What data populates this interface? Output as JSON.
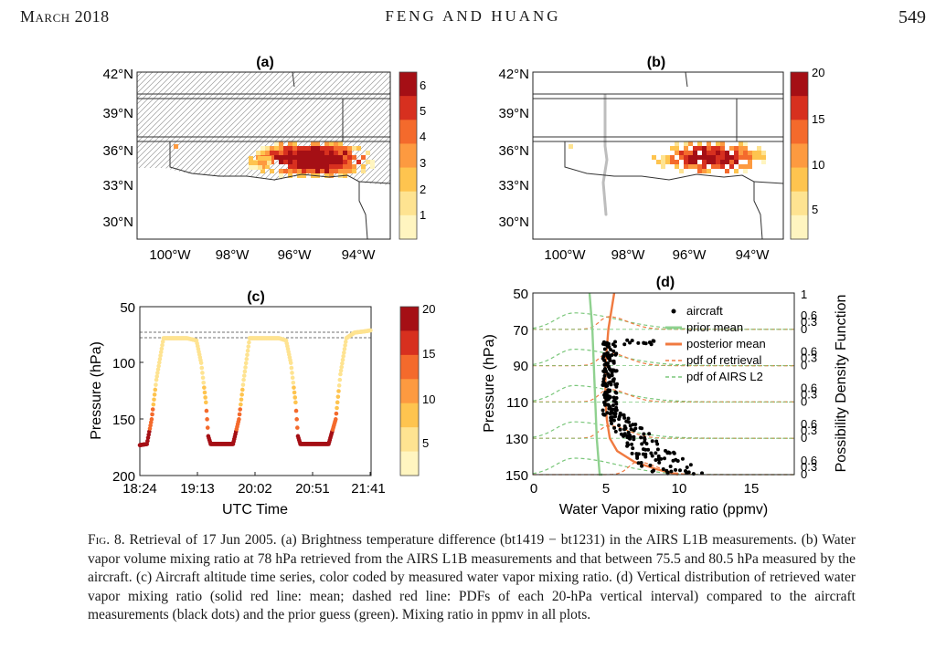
{
  "header": {
    "left": "March 2018",
    "center": "FENG AND HUANG",
    "right": "549"
  },
  "caption": {
    "label": "Fig. 8.",
    "text": "Retrieval of 17 Jun 2005. (a) Brightness temperature difference (bt1419 − bt1231) in the AIRS L1B measurements. (b) Water vapor volume mixing ratio at 78 hPa retrieved from the AIRS L1B measurements and that between 75.5 and 80.5 hPa measured by the aircraft. (c) Aircraft altitude time series, color coded by measured water vapor mixing ratio. (d) Vertical distribution of retrieved water vapor mixing ratio (solid red line: mean; dashed red line: PDFs of each 20-hPa vertical interval) compared to the aircraft measurements (black dots) and the prior guess (green). Mixing ratio in ppmv in all plots."
  },
  "colors": [
    "#fff5c0",
    "#fee391",
    "#fec44f",
    "#fd9a40",
    "#f46a2c",
    "#d7301f",
    "#a50f15"
  ],
  "panels": {
    "a": {
      "label": "(a)",
      "lat_ticks": [
        "42°N",
        "39°N",
        "36°N",
        "33°N",
        "30°N"
      ],
      "lon_ticks": [
        "100°W",
        "98°W",
        "96°W",
        "94°W"
      ],
      "colorbar_ticks": [
        "6",
        "5",
        "4",
        "3",
        "2",
        "1"
      ]
    },
    "b": {
      "label": "(b)",
      "lat_ticks": [
        "42°N",
        "39°N",
        "36°N",
        "33°N",
        "30°N"
      ],
      "lon_ticks": [
        "100°W",
        "98°W",
        "96°W",
        "94°W"
      ],
      "colorbar_ticks": [
        "20",
        "15",
        "10",
        "5"
      ]
    },
    "c": {
      "label": "(c)",
      "ylabel": "Pressure (hPa)",
      "xlabel": "UTC Time",
      "yticks": [
        "50",
        "100",
        "150",
        "200"
      ],
      "xticks": [
        "18:24",
        "19:13",
        "20:02",
        "20:51",
        "21:41"
      ],
      "colorbar_ticks": [
        "20",
        "15",
        "10",
        "5"
      ]
    },
    "d": {
      "label": "(d)",
      "ylabel": "Pressure (hPa)",
      "xlabel": "Water Vapor mixing ratio (ppmv)",
      "right_label": "Possibility Density Function",
      "yticks": [
        "50",
        "70",
        "90",
        "110",
        "130",
        "150"
      ],
      "xticks": [
        "0",
        "5",
        "10",
        "15"
      ],
      "pdf_ticks": [
        "1",
        "0.6",
        "0.3",
        "0"
      ],
      "legend": [
        "aircraft",
        "prior mean",
        "posterior mean",
        "pdf of retrieval",
        "pdf of AIRS L2"
      ]
    }
  },
  "chart_data": [
    {
      "type": "line",
      "panel": "c",
      "ylabel": "Pressure (hPa)",
      "xlabel": "UTC Time",
      "ylim": [
        200,
        50
      ],
      "xticks": [
        "18:24",
        "19:13",
        "20:02",
        "20:51",
        "21:41"
      ],
      "x_minutes": [
        0,
        6,
        10,
        14,
        20,
        40,
        48,
        52,
        56,
        58,
        60,
        70,
        79,
        84,
        88,
        93,
        98,
        118,
        124,
        128,
        132,
        134,
        136,
        144,
        156,
        160,
        166,
        170,
        175,
        182,
        190,
        196
      ],
      "pressure": [
        173,
        172,
        150,
        115,
        78,
        78,
        80,
        100,
        135,
        165,
        172,
        172,
        172,
        150,
        115,
        78,
        78,
        78,
        80,
        100,
        135,
        165,
        172,
        172,
        172,
        172,
        150,
        110,
        78,
        73,
        72,
        71
      ]
    },
    {
      "type": "line",
      "panel": "d",
      "ylabel": "Pressure (hPa)",
      "xlabel": "Water Vapor mixing ratio (ppmv)",
      "xlim": [
        0,
        18
      ],
      "ylim": [
        150,
        50
      ],
      "series": [
        {
          "name": "prior mean",
          "x": [
            3.9,
            4.1,
            4.2,
            4.3,
            4.4,
            4.6,
            4.8
          ],
          "y": [
            50,
            70,
            90,
            110,
            130,
            150,
            152
          ]
        },
        {
          "name": "posterior mean",
          "x": [
            5.6,
            5.2,
            5.0,
            5.0,
            5.1,
            5.3,
            5.8,
            7,
            8.5,
            10
          ],
          "y": [
            50,
            70,
            90,
            110,
            120,
            130,
            137,
            143,
            147,
            150
          ]
        }
      ]
    }
  ]
}
